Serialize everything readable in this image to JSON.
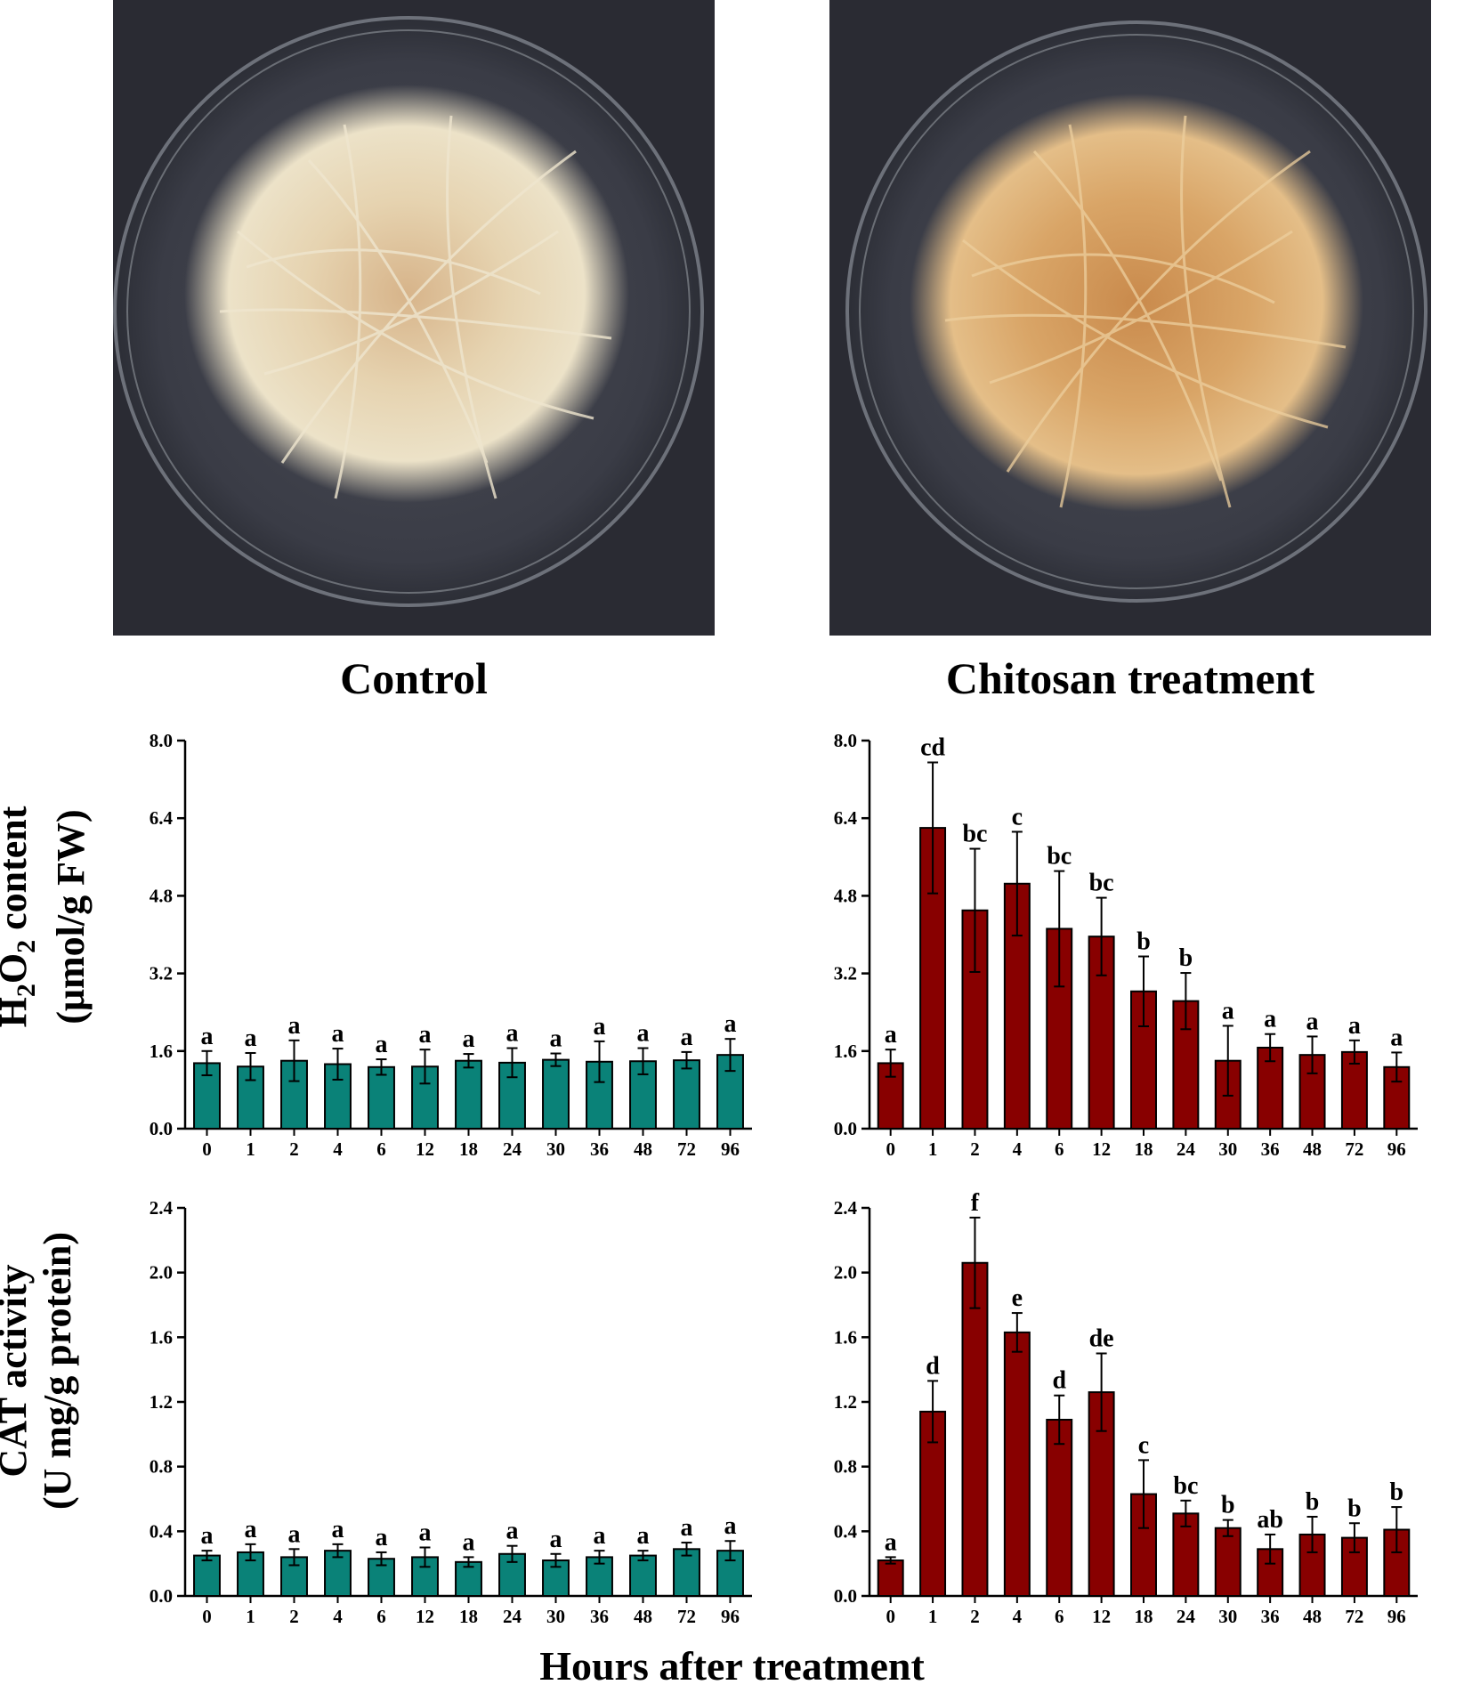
{
  "captions": {
    "left": "Control",
    "right": "Chitosan treatment"
  },
  "axis_labels": {
    "y_top_line1_pre": "H",
    "y_top_line1_sub1": "2",
    "y_top_line1_mid": "O",
    "y_top_line1_sub2": "2",
    "y_top_line1_post": " content",
    "y_top_line2": "(μmol/g FW)",
    "y_bottom_line1": "CAT activity",
    "y_bottom_line2": "(U mg/g protein)",
    "x": "Hours after treatment"
  },
  "colors": {
    "control": "#0a8278",
    "chitosan": "#880000",
    "photo_bg": "#2a2b33"
  },
  "chart_data": [
    {
      "id": "h2o2-control",
      "type": "bar",
      "color": "#0a8278",
      "categories": [
        "0",
        "1",
        "2",
        "4",
        "6",
        "12",
        "18",
        "24",
        "30",
        "36",
        "48",
        "72",
        "96"
      ],
      "values": [
        1.35,
        1.28,
        1.4,
        1.33,
        1.27,
        1.28,
        1.4,
        1.36,
        1.42,
        1.38,
        1.39,
        1.41,
        1.52
      ],
      "errors": [
        0.25,
        0.28,
        0.42,
        0.32,
        0.16,
        0.35,
        0.14,
        0.3,
        0.13,
        0.42,
        0.27,
        0.17,
        0.33
      ],
      "labels": [
        "a",
        "a",
        "a",
        "a",
        "a",
        "a",
        "a",
        "a",
        "a",
        "a",
        "a",
        "a",
        "a"
      ],
      "ylim": [
        0,
        8.0
      ],
      "yticks": [
        "0.0",
        "1.6",
        "3.2",
        "4.8",
        "6.4",
        "8.0"
      ]
    },
    {
      "id": "h2o2-chitosan",
      "type": "bar",
      "color": "#880000",
      "categories": [
        "0",
        "1",
        "2",
        "4",
        "6",
        "12",
        "18",
        "24",
        "30",
        "36",
        "48",
        "72",
        "96"
      ],
      "values": [
        1.35,
        6.2,
        4.5,
        5.05,
        4.12,
        3.96,
        2.83,
        2.63,
        1.4,
        1.67,
        1.52,
        1.58,
        1.27
      ],
      "errors": [
        0.28,
        1.35,
        1.27,
        1.07,
        1.19,
        0.8,
        0.72,
        0.58,
        0.72,
        0.28,
        0.38,
        0.24,
        0.3
      ],
      "labels": [
        "a",
        "cd",
        "bc",
        "c",
        "bc",
        "bc",
        "b",
        "b",
        "a",
        "a",
        "a",
        "a",
        "a"
      ],
      "ylim": [
        0,
        8.0
      ],
      "yticks": [
        "0.0",
        "1.6",
        "3.2",
        "4.8",
        "6.4",
        "8.0"
      ]
    },
    {
      "id": "cat-control",
      "type": "bar",
      "color": "#0a8278",
      "categories": [
        "0",
        "1",
        "2",
        "4",
        "6",
        "12",
        "18",
        "24",
        "30",
        "36",
        "48",
        "72",
        "96"
      ],
      "values": [
        0.25,
        0.27,
        0.24,
        0.28,
        0.23,
        0.24,
        0.21,
        0.26,
        0.22,
        0.24,
        0.25,
        0.29,
        0.28
      ],
      "errors": [
        0.03,
        0.05,
        0.05,
        0.04,
        0.04,
        0.06,
        0.03,
        0.05,
        0.04,
        0.04,
        0.03,
        0.04,
        0.06
      ],
      "labels": [
        "a",
        "a",
        "a",
        "a",
        "a",
        "a",
        "a",
        "a",
        "a",
        "a",
        "a",
        "a",
        "a"
      ],
      "ylim": [
        0,
        2.4
      ],
      "yticks": [
        "0.0",
        "0.4",
        "0.8",
        "1.2",
        "1.6",
        "2.0",
        "2.4"
      ]
    },
    {
      "id": "cat-chitosan",
      "type": "bar",
      "color": "#880000",
      "categories": [
        "0",
        "1",
        "2",
        "4",
        "6",
        "12",
        "18",
        "24",
        "30",
        "36",
        "48",
        "72",
        "96"
      ],
      "values": [
        0.22,
        1.14,
        2.06,
        1.63,
        1.09,
        1.26,
        0.63,
        0.51,
        0.42,
        0.29,
        0.38,
        0.36,
        0.41
      ],
      "errors": [
        0.02,
        0.19,
        0.28,
        0.12,
        0.15,
        0.24,
        0.21,
        0.08,
        0.05,
        0.09,
        0.11,
        0.09,
        0.14
      ],
      "labels": [
        "a",
        "d",
        "f",
        "e",
        "d",
        "de",
        "c",
        "bc",
        "b",
        "ab",
        "b",
        "b",
        "b"
      ],
      "ylim": [
        0,
        2.4
      ],
      "yticks": [
        "0.0",
        "0.4",
        "0.8",
        "1.2",
        "1.6",
        "2.0",
        "2.4"
      ]
    }
  ]
}
